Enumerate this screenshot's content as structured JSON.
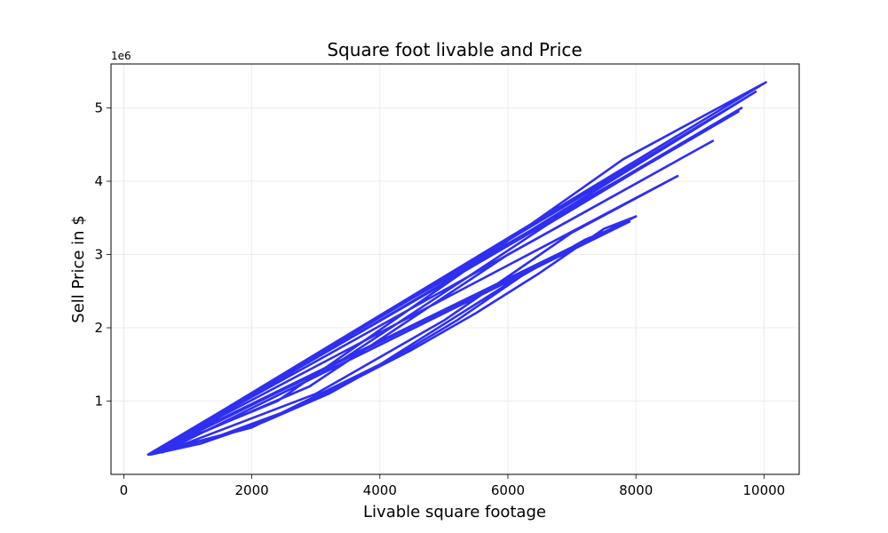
{
  "chart_data": {
    "type": "line",
    "title": "Square foot livable and Price",
    "xlabel": "Livable square footage",
    "ylabel": "Sell Price in $",
    "y_offset_label": "1e6",
    "xlim": [
      -200,
      10550
    ],
    "ylim": [
      0,
      5.6
    ],
    "x_ticks": [
      0,
      2000,
      4000,
      6000,
      8000,
      10000
    ],
    "x_tick_labels": [
      "0",
      "2000",
      "4000",
      "6000",
      "8000",
      "10000"
    ],
    "y_ticks": [
      1,
      2,
      3,
      4,
      5
    ],
    "y_tick_labels": [
      "1",
      "2",
      "3",
      "4",
      "5"
    ],
    "grid": true,
    "series": [
      {
        "color": "#2f2ff0",
        "x": [
          380,
          1500,
          2500,
          3500,
          4500,
          5500,
          6500,
          7500,
          8000,
          450,
          2000,
          4000,
          6000,
          7200,
          7900,
          600,
          3000,
          5000,
          7000,
          8650,
          380,
          2400,
          5200,
          7800,
          10030,
          400,
          3300,
          6600,
          9650,
          450,
          2900,
          6000,
          9200,
          380,
          4500,
          9600,
          400,
          5000,
          9870,
          420,
          1200,
          2200,
          3200,
          4200,
          5200,
          6200,
          7000,
          380
        ],
        "y": [
          0.27,
          0.53,
          0.85,
          1.25,
          1.7,
          2.2,
          2.75,
          3.35,
          3.52,
          0.28,
          0.64,
          1.5,
          2.6,
          3.2,
          3.45,
          0.3,
          1.1,
          2.1,
          3.3,
          4.07,
          0.27,
          1.0,
          2.7,
          4.3,
          5.35,
          0.27,
          1.5,
          3.4,
          5.0,
          0.28,
          1.2,
          3.0,
          4.55,
          0.27,
          2.4,
          4.95,
          0.27,
          2.6,
          5.22,
          0.27,
          0.42,
          0.72,
          1.1,
          1.58,
          2.1,
          2.7,
          3.1,
          0.27
        ]
      }
    ]
  }
}
